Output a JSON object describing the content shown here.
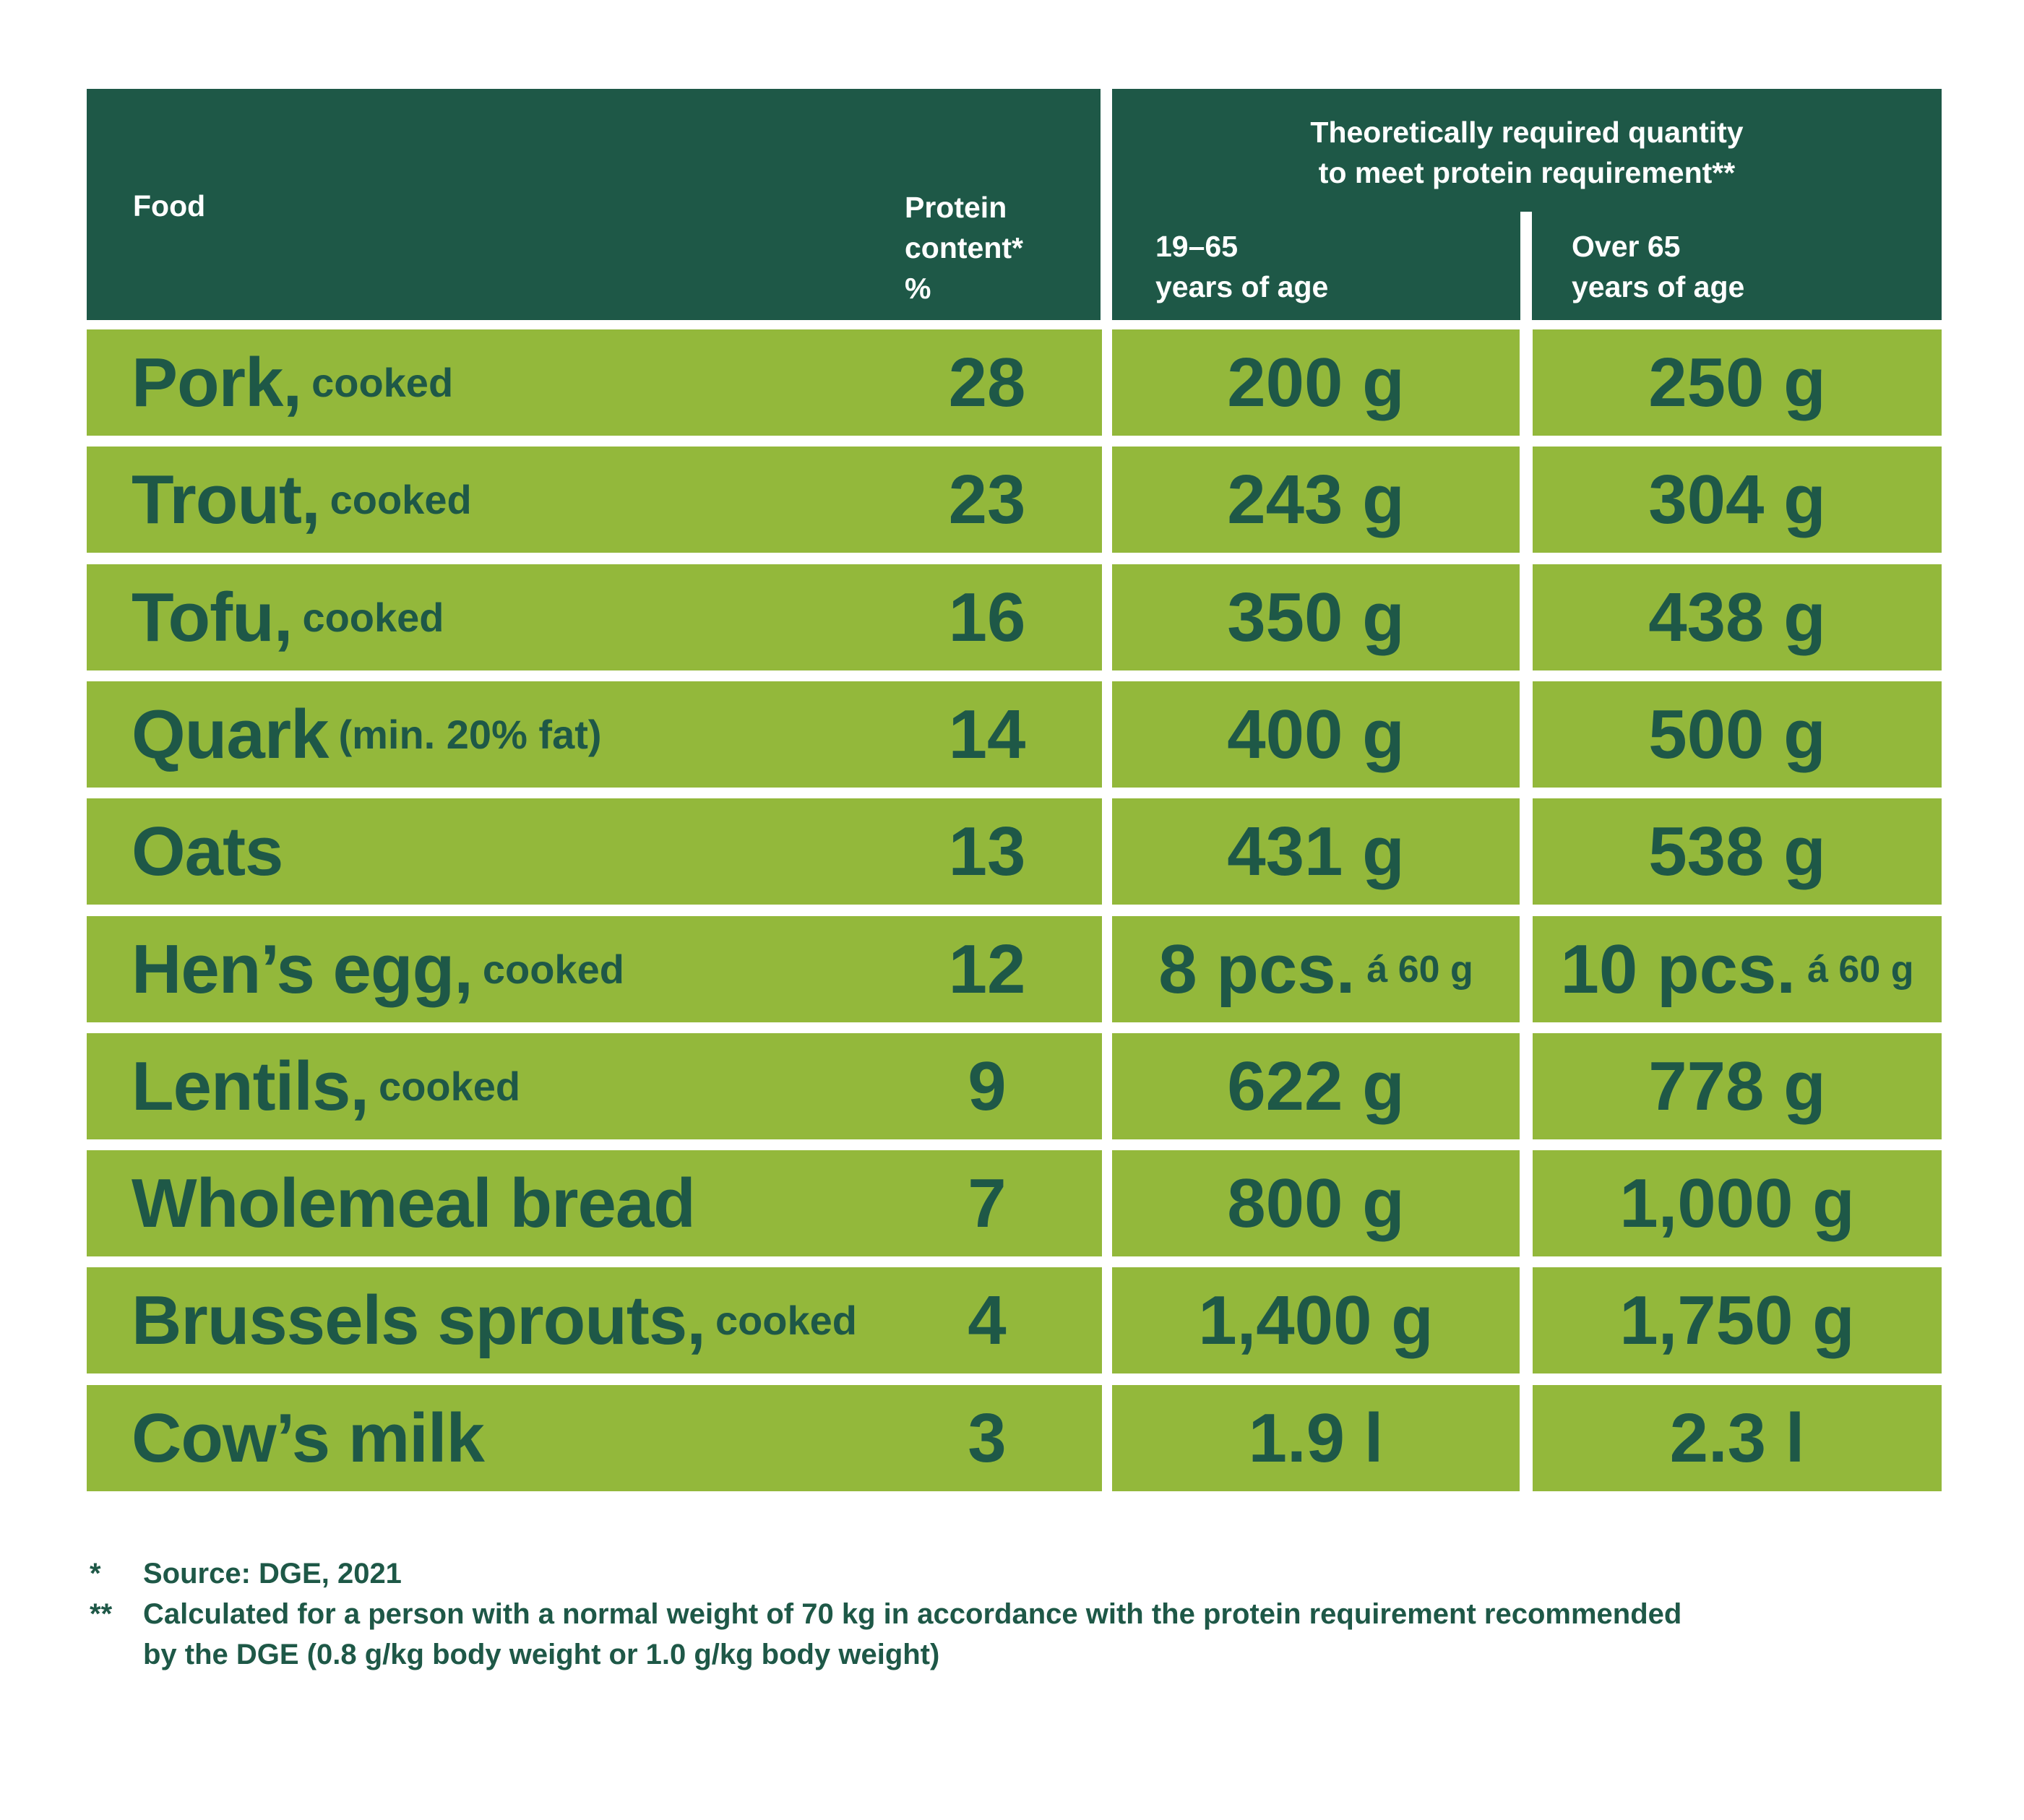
{
  "header": {
    "food": "Food",
    "protein_content": [
      "Protein",
      "content*",
      "%"
    ],
    "required_quantity": [
      "Theoretically required quantity",
      "to meet protein requirement**"
    ],
    "age_19_65": [
      "19–65",
      "years of age"
    ],
    "age_over_65": [
      "Over 65",
      "years of age"
    ]
  },
  "rows": [
    {
      "food": "Pork,",
      "note": "cooked",
      "protein": "28",
      "q1": "200 g",
      "q1_note": "",
      "q2": "250 g",
      "q2_note": ""
    },
    {
      "food": "Trout,",
      "note": "cooked",
      "protein": "23",
      "q1": "243 g",
      "q1_note": "",
      "q2": "304 g",
      "q2_note": ""
    },
    {
      "food": "Tofu,",
      "note": "cooked",
      "protein": "16",
      "q1": "350 g",
      "q1_note": "",
      "q2": "438 g",
      "q2_note": ""
    },
    {
      "food": "Quark",
      "note": "(min. 20% fat)",
      "protein": "14",
      "q1": "400 g",
      "q1_note": "",
      "q2": "500 g",
      "q2_note": ""
    },
    {
      "food": "Oats",
      "note": "",
      "protein": "13",
      "q1": "431 g",
      "q1_note": "",
      "q2": "538 g",
      "q2_note": ""
    },
    {
      "food": "Hen’s egg,",
      "note": "cooked",
      "protein": "12",
      "q1": "8 pcs.",
      "q1_note": "á 60 g",
      "q2": "10 pcs.",
      "q2_note": "á 60 g"
    },
    {
      "food": "Lentils,",
      "note": "cooked",
      "protein": "9",
      "q1": "622 g",
      "q1_note": "",
      "q2": "778 g",
      "q2_note": ""
    },
    {
      "food": "Wholemeal bread",
      "note": "",
      "protein": "7",
      "q1": "800 g",
      "q1_note": "",
      "q2": "1,000 g",
      "q2_note": ""
    },
    {
      "food": "Brussels sprouts,",
      "note": "cooked",
      "protein": "4",
      "q1": "1,400 g",
      "q1_note": "",
      "q2": "1,750 g",
      "q2_note": ""
    },
    {
      "food": "Cow’s milk",
      "note": "",
      "protein": "3",
      "q1": "1.9 l",
      "q1_note": "",
      "q2": "2.3 l",
      "q2_note": ""
    }
  ],
  "footnotes": [
    {
      "mark": "*",
      "lines": [
        "Source: DGE, 2021"
      ]
    },
    {
      "mark": "**",
      "lines": [
        "Calculated for a person with a normal weight of 70 kg in accordance with the protein requirement recommended",
        "by the DGE (0.8 g/kg body weight or 1.0 g/kg body weight)"
      ]
    }
  ],
  "colors": {
    "header_bg": "#1e5847",
    "cell_bg": "#93b83b",
    "text": "#1e5847"
  }
}
